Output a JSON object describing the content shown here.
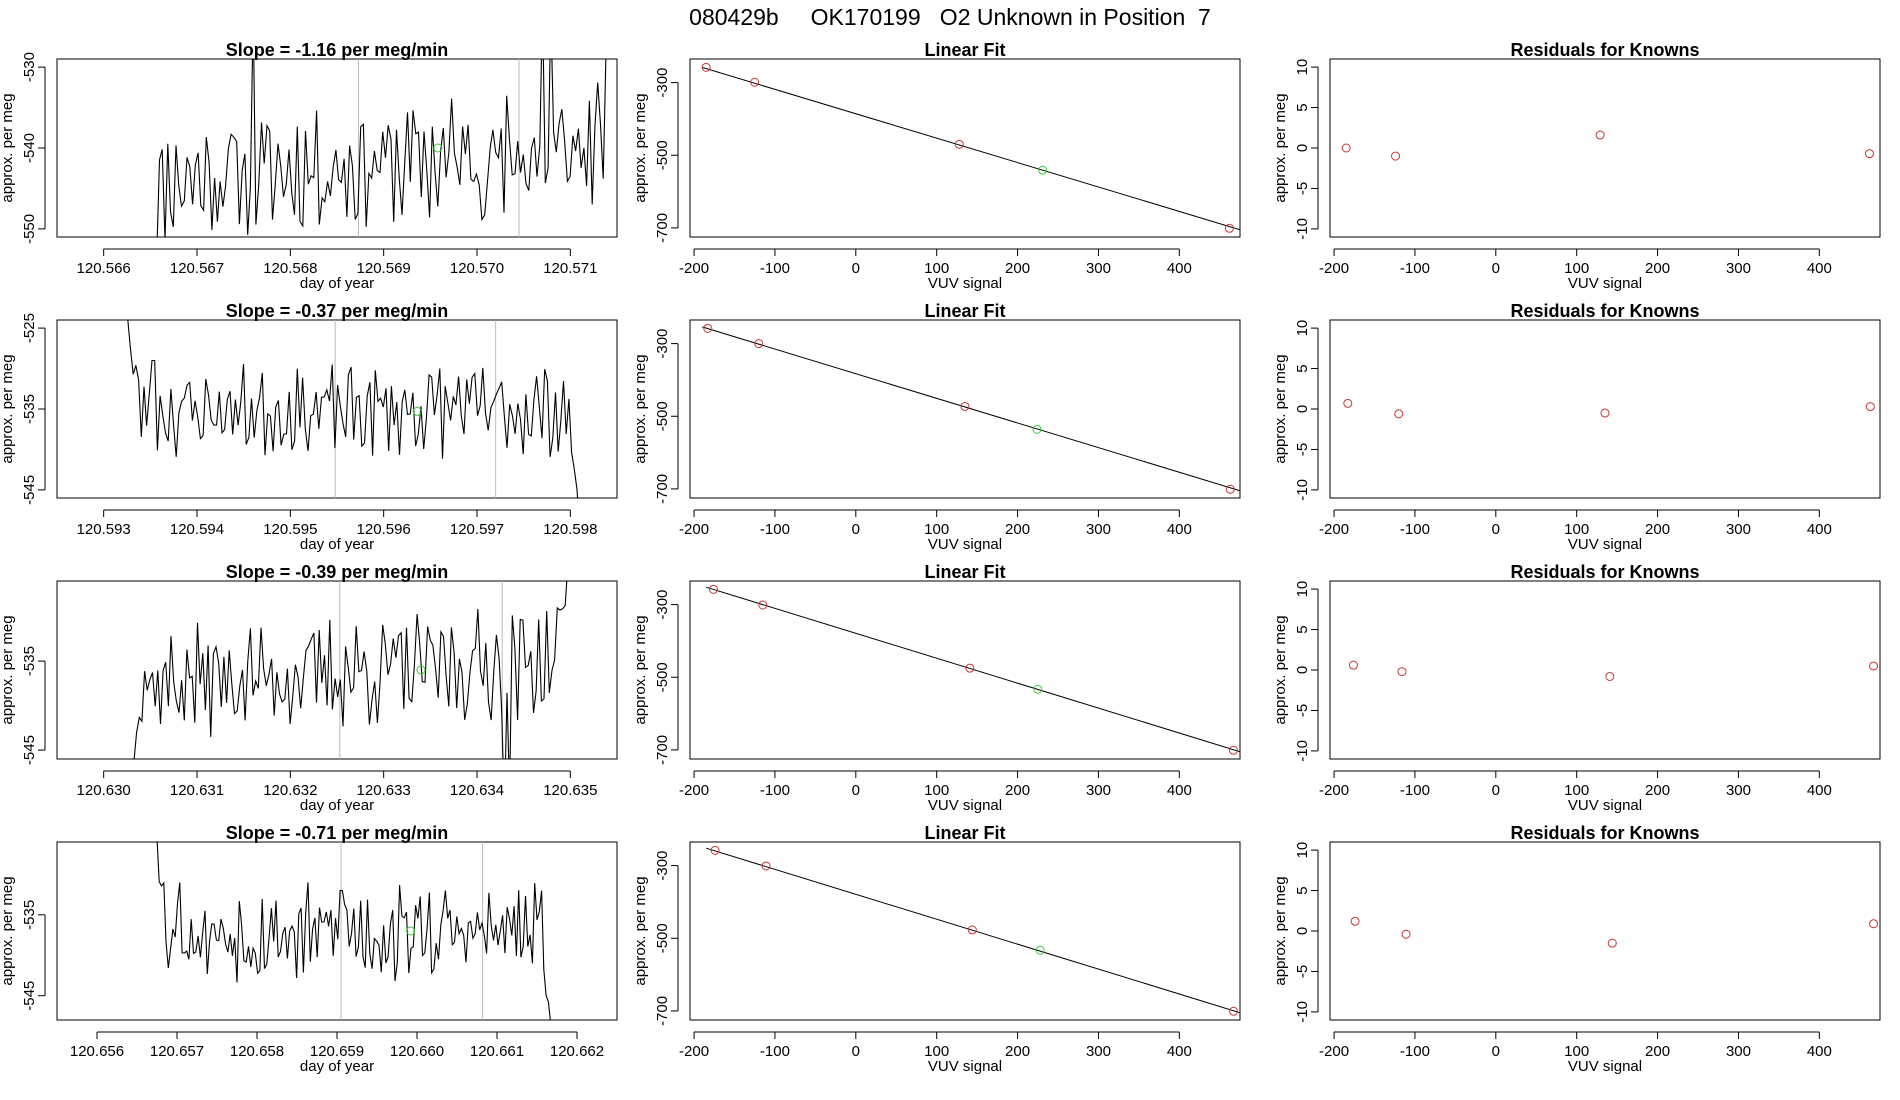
{
  "page": {
    "title": "080429b     OK170199   O2 Unknown in Position  7"
  },
  "colors": {
    "axis": "#000000",
    "line": "#000000",
    "known_point": "#cc3333",
    "unknown_point": "#33cc33",
    "marker_line": "#bbbbbb"
  },
  "chart_data": [
    {
      "type": "line",
      "row": 0,
      "panel": "timeseries",
      "title": "Slope =  -1.16  per meg/min",
      "xlabel": "day of year",
      "ylabel": "approx. per meg",
      "xlim": [
        120.5655,
        120.5715
      ],
      "ylim": [
        -551,
        -529
      ],
      "xticks": [
        120.566,
        120.567,
        120.568,
        120.569,
        120.57,
        120.571
      ],
      "xtick_labels": [
        "120.566",
        "120.567",
        "120.568",
        "120.569",
        "120.570",
        "120.571"
      ],
      "yticks": [
        -550,
        -540,
        -530
      ],
      "ytick_labels": [
        "-550",
        "-540",
        "-530"
      ],
      "t_start": 120.56648,
      "t_end": 120.57147,
      "n": 170,
      "start_value": -562,
      "start_len": 6,
      "end_value": -520,
      "end_len": 6,
      "base": -542,
      "amplitude": 6.5,
      "trend": 4,
      "seed": 11,
      "spikes": [
        {
          "t": 120.5676,
          "v": -523
        },
        {
          "t": 120.5703,
          "v": -548
        },
        {
          "t": 120.5707,
          "v": -522
        },
        {
          "t": 120.5708,
          "v": -523
        }
      ],
      "vlines": [
        120.56873,
        120.57045
      ],
      "unknown_point": {
        "x": 120.56958,
        "y": -540
      }
    },
    {
      "type": "scatter",
      "row": 0,
      "panel": "fit",
      "title": "Linear Fit",
      "xlabel": "VUV signal",
      "ylabel": "approx. per meg",
      "xlim": [
        -205,
        475
      ],
      "ylim": [
        -725,
        -235
      ],
      "xticks": [
        -200,
        -100,
        0,
        100,
        200,
        300,
        400
      ],
      "xtick_labels": [
        "-200",
        "-100",
        "0",
        "100",
        "200",
        "300",
        "400"
      ],
      "yticks": [
        -300,
        -500,
        -700
      ],
      "ytick_labels": [
        "-300",
        "-500",
        "-700"
      ],
      "fit_line": {
        "x0": -190,
        "y0": -258,
        "x1": 475,
        "y1": -705
      },
      "known_points": [
        {
          "x": -185,
          "y": -258
        },
        {
          "x": -125,
          "y": -299
        },
        {
          "x": 128,
          "y": -470
        },
        {
          "x": 462,
          "y": -701
        }
      ],
      "unknown_point": {
        "x": 231,
        "y": -541
      }
    },
    {
      "type": "scatter",
      "row": 0,
      "panel": "residuals",
      "title": "Residuals for Knowns",
      "xlabel": "VUV signal",
      "ylabel": "approx. per meg",
      "xlim": [
        -205,
        475
      ],
      "ylim": [
        -11,
        11
      ],
      "xticks": [
        -200,
        -100,
        0,
        100,
        200,
        300,
        400
      ],
      "xtick_labels": [
        "-200",
        "-100",
        "0",
        "100",
        "200",
        "300",
        "400"
      ],
      "yticks": [
        -10,
        -5,
        0,
        5,
        10
      ],
      "ytick_labels": [
        "-10",
        "-5",
        "0",
        "5",
        "10"
      ],
      "points": [
        {
          "x": -185,
          "y": 0
        },
        {
          "x": -124,
          "y": -1
        },
        {
          "x": 129,
          "y": 1.6
        },
        {
          "x": 462,
          "y": -0.7
        }
      ]
    },
    {
      "type": "line",
      "row": 1,
      "panel": "timeseries",
      "title": "Slope =  -0.37  per meg/min",
      "xlabel": "day of year",
      "ylabel": "approx. per meg",
      "xlim": [
        120.5925,
        120.5985
      ],
      "ylim": [
        -546,
        -524
      ],
      "xticks": [
        120.593,
        120.594,
        120.595,
        120.596,
        120.597,
        120.598
      ],
      "xtick_labels": [
        "120.593",
        "120.594",
        "120.595",
        "120.596",
        "120.597",
        "120.598"
      ],
      "yticks": [
        -545,
        -535,
        -525
      ],
      "ytick_labels": [
        "-545",
        "-535",
        "-525"
      ],
      "t_start": 120.59323,
      "t_end": 120.5981,
      "n": 170,
      "start_value": -520,
      "start_len": 7,
      "end_value": -550,
      "end_len": 6,
      "base": -535.2,
      "amplitude": 4.5,
      "trend": 0,
      "seed": 23,
      "spikes": [
        {
          "t": 120.59353,
          "v": -529
        },
        {
          "t": 120.5966,
          "v": -530
        },
        {
          "t": 120.5968,
          "v": -531
        }
      ],
      "vlines": [
        120.59548,
        120.5972
      ],
      "unknown_point": {
        "x": 120.59636,
        "y": -535.3
      }
    },
    {
      "type": "scatter",
      "row": 1,
      "panel": "fit",
      "title": "Linear Fit",
      "xlabel": "VUV signal",
      "ylabel": "approx. per meg",
      "xlim": [
        -205,
        475
      ],
      "ylim": [
        -725,
        -235
      ],
      "xticks": [
        -200,
        -100,
        0,
        100,
        200,
        300,
        400
      ],
      "xtick_labels": [
        "-200",
        "-100",
        "0",
        "100",
        "200",
        "300",
        "400"
      ],
      "yticks": [
        -300,
        -500,
        -700
      ],
      "ytick_labels": [
        "-300",
        "-500",
        "-700"
      ],
      "fit_line": {
        "x0": -190,
        "y0": -254,
        "x1": 475,
        "y1": -705
      },
      "known_points": [
        {
          "x": -183,
          "y": -258
        },
        {
          "x": -120,
          "y": -300
        },
        {
          "x": 135,
          "y": -473
        },
        {
          "x": 463,
          "y": -701
        }
      ],
      "unknown_point": {
        "x": 224,
        "y": -536
      }
    },
    {
      "type": "scatter",
      "row": 1,
      "panel": "residuals",
      "title": "Residuals for Knowns",
      "xlabel": "VUV signal",
      "ylabel": "approx. per meg",
      "xlim": [
        -205,
        475
      ],
      "ylim": [
        -11,
        11
      ],
      "xticks": [
        -200,
        -100,
        0,
        100,
        200,
        300,
        400
      ],
      "xtick_labels": [
        "-200",
        "-100",
        "0",
        "100",
        "200",
        "300",
        "400"
      ],
      "yticks": [
        -10,
        -5,
        0,
        5,
        10
      ],
      "ytick_labels": [
        "-10",
        "-5",
        "0",
        "5",
        "10"
      ],
      "points": [
        {
          "x": -183,
          "y": 0.7
        },
        {
          "x": -120,
          "y": -0.6
        },
        {
          "x": 135,
          "y": -0.5
        },
        {
          "x": 463,
          "y": 0.3
        }
      ]
    },
    {
      "type": "line",
      "row": 2,
      "panel": "timeseries",
      "title": "Slope =  -0.39  per meg/min",
      "xlabel": "day of year",
      "ylabel": "approx. per meg",
      "xlim": [
        120.6295,
        120.6355
      ],
      "ylim": [
        -546,
        -526
      ],
      "xticks": [
        120.63,
        120.631,
        120.632,
        120.633,
        120.634,
        120.635
      ],
      "xtick_labels": [
        "120.630",
        "120.631",
        "120.632",
        "120.633",
        "120.634",
        "120.635"
      ],
      "yticks": [
        -545,
        -535
      ],
      "ytick_labels": [
        "-545",
        "-535"
      ],
      "t_start": 120.63024,
      "t_end": 120.63503,
      "n": 170,
      "start_value": -551,
      "start_len": 8,
      "end_value": -518,
      "end_len": 9,
      "base": -536.3,
      "amplitude": 5,
      "trend": 2.5,
      "seed": 37,
      "spikes": [
        {
          "t": 120.6343,
          "v": -552
        },
        {
          "t": 120.63435,
          "v": -550
        }
      ],
      "vlines": [
        120.63253,
        120.63427
      ],
      "unknown_point": {
        "x": 120.6334,
        "y": -536
      }
    },
    {
      "type": "scatter",
      "row": 2,
      "panel": "fit",
      "title": "Linear Fit",
      "xlabel": "VUV signal",
      "ylabel": "approx. per meg",
      "xlim": [
        -205,
        475
      ],
      "ylim": [
        -725,
        -235
      ],
      "xticks": [
        -200,
        -100,
        0,
        100,
        200,
        300,
        400
      ],
      "xtick_labels": [
        "-200",
        "-100",
        "0",
        "100",
        "200",
        "300",
        "400"
      ],
      "yticks": [
        -300,
        -500,
        -700
      ],
      "ytick_labels": [
        "-300",
        "-500",
        "-700"
      ],
      "fit_line": {
        "x0": -185,
        "y0": -252,
        "x1": 475,
        "y1": -705
      },
      "known_points": [
        {
          "x": -176,
          "y": -258
        },
        {
          "x": -115,
          "y": -301
        },
        {
          "x": 141,
          "y": -475
        },
        {
          "x": 467,
          "y": -701
        }
      ],
      "unknown_point": {
        "x": 225,
        "y": -533
      }
    },
    {
      "type": "scatter",
      "row": 2,
      "panel": "residuals",
      "title": "Residuals for Knowns",
      "xlabel": "VUV signal",
      "ylabel": "approx. per meg",
      "xlim": [
        -205,
        475
      ],
      "ylim": [
        -11,
        11
      ],
      "xticks": [
        -200,
        -100,
        0,
        100,
        200,
        300,
        400
      ],
      "xtick_labels": [
        "-200",
        "-100",
        "0",
        "100",
        "200",
        "300",
        "400"
      ],
      "yticks": [
        -10,
        -5,
        0,
        5,
        10
      ],
      "ytick_labels": [
        "-10",
        "-5",
        "0",
        "5",
        "10"
      ],
      "points": [
        {
          "x": -176,
          "y": 0.6
        },
        {
          "x": -116,
          "y": -0.2
        },
        {
          "x": 141,
          "y": -0.8
        },
        {
          "x": 467,
          "y": 0.5
        }
      ]
    },
    {
      "type": "line",
      "row": 3,
      "panel": "timeseries",
      "title": "Slope =  -0.71  per meg/min",
      "xlabel": "day of year",
      "ylabel": "approx. per meg",
      "xlim": [
        120.6555,
        120.6625
      ],
      "ylim": [
        -548,
        -526
      ],
      "xticks": [
        120.656,
        120.657,
        120.658,
        120.659,
        120.66,
        120.661,
        120.662
      ],
      "xtick_labels": [
        "120.656",
        "120.657",
        "120.658",
        "120.659",
        "120.660",
        "120.661",
        "120.662"
      ],
      "yticks": [
        -545,
        -535
      ],
      "ytick_labels": [
        "-545",
        "-535"
      ],
      "t_start": 120.65672,
      "t_end": 120.6617,
      "n": 175,
      "start_value": -520,
      "start_len": 7,
      "end_value": -552,
      "end_len": 6,
      "base": -537.3,
      "amplitude": 5,
      "trend": 0,
      "seed": 53,
      "spikes": [
        {
          "t": 120.65703,
          "v": -531
        },
        {
          "t": 120.65905,
          "v": -532
        }
      ],
      "vlines": [
        120.65905,
        120.66082
      ],
      "unknown_point": {
        "x": 120.65992,
        "y": -537
      }
    },
    {
      "type": "scatter",
      "row": 3,
      "panel": "fit",
      "title": "Linear Fit",
      "xlabel": "VUV signal",
      "ylabel": "approx. per meg",
      "xlim": [
        -205,
        475
      ],
      "ylim": [
        -725,
        -235
      ],
      "xticks": [
        -200,
        -100,
        0,
        100,
        200,
        300,
        400
      ],
      "xtick_labels": [
        "-200",
        "-100",
        "0",
        "100",
        "200",
        "300",
        "400"
      ],
      "yticks": [
        -300,
        -500,
        -700
      ],
      "ytick_labels": [
        "-300",
        "-500",
        "-700"
      ],
      "fit_line": {
        "x0": -185,
        "y0": -252,
        "x1": 475,
        "y1": -705
      },
      "known_points": [
        {
          "x": -174,
          "y": -258
        },
        {
          "x": -111,
          "y": -301
        },
        {
          "x": 144,
          "y": -477
        },
        {
          "x": 467,
          "y": -701
        }
      ],
      "unknown_point": {
        "x": 228,
        "y": -533
      }
    },
    {
      "type": "scatter",
      "row": 3,
      "panel": "residuals",
      "title": "Residuals for Knowns",
      "xlabel": "VUV signal",
      "ylabel": "approx. per meg",
      "xlim": [
        -205,
        475
      ],
      "ylim": [
        -11,
        11
      ],
      "xticks": [
        -200,
        -100,
        0,
        100,
        200,
        300,
        400
      ],
      "xtick_labels": [
        "-200",
        "-100",
        "0",
        "100",
        "200",
        "300",
        "400"
      ],
      "yticks": [
        -10,
        -5,
        0,
        5,
        10
      ],
      "ytick_labels": [
        "-10",
        "-5",
        "0",
        "5",
        "10"
      ],
      "points": [
        {
          "x": -174,
          "y": 1.2
        },
        {
          "x": -111,
          "y": -0.4
        },
        {
          "x": 144,
          "y": -1.5
        },
        {
          "x": 467,
          "y": 0.9
        }
      ]
    }
  ]
}
